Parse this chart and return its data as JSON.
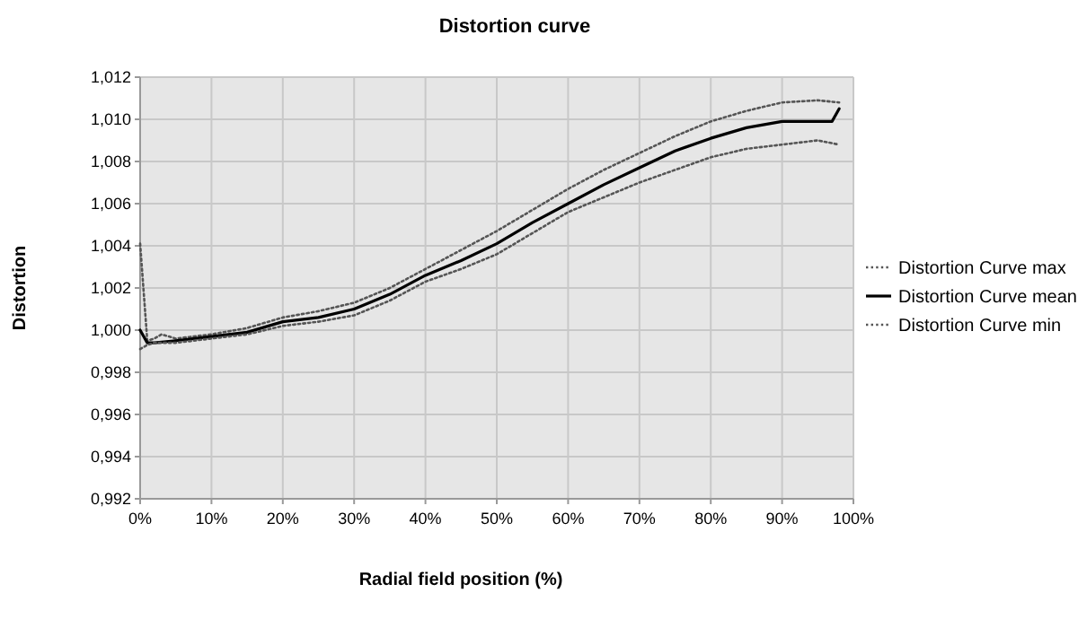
{
  "chart_data": {
    "type": "line",
    "title": "Distortion curve",
    "xlabel": "Radial field position (%)",
    "ylabel": "Distortion",
    "xlim": [
      0,
      100
    ],
    "xticks": [
      {
        "value": 0,
        "label": "0%"
      },
      {
        "value": 10,
        "label": "10%"
      },
      {
        "value": 20,
        "label": "20%"
      },
      {
        "value": 30,
        "label": "30%"
      },
      {
        "value": 40,
        "label": "40%"
      },
      {
        "value": 50,
        "label": "50%"
      },
      {
        "value": 60,
        "label": "60%"
      },
      {
        "value": 70,
        "label": "70%"
      },
      {
        "value": 80,
        "label": "80%"
      },
      {
        "value": 90,
        "label": "90%"
      },
      {
        "value": 100,
        "label": "100%"
      }
    ],
    "ylim": [
      0.992,
      1.012
    ],
    "yticks": [
      {
        "value": 0.992,
        "label": "0,992"
      },
      {
        "value": 0.994,
        "label": "0,994"
      },
      {
        "value": 0.996,
        "label": "0,996"
      },
      {
        "value": 0.998,
        "label": "0,998"
      },
      {
        "value": 1.0,
        "label": "1,000"
      },
      {
        "value": 1.002,
        "label": "1,002"
      },
      {
        "value": 1.004,
        "label": "1,004"
      },
      {
        "value": 1.006,
        "label": "1,006"
      },
      {
        "value": 1.008,
        "label": "1,008"
      },
      {
        "value": 1.01,
        "label": "1,010"
      },
      {
        "value": 1.012,
        "label": "1,012"
      }
    ],
    "grid": true,
    "legend": "right",
    "marker": "none",
    "series": [
      {
        "name": "Distortion Curve max",
        "color": "#555555",
        "line_style": "dotted",
        "x": [
          0,
          1,
          2,
          3,
          5,
          10,
          15,
          20,
          25,
          30,
          35,
          40,
          45,
          50,
          55,
          60,
          65,
          70,
          75,
          80,
          85,
          90,
          95,
          98
        ],
        "values": [
          1.0041,
          0.9995,
          0.9996,
          0.9998,
          0.9996,
          0.9998,
          1.0001,
          1.0006,
          1.0009,
          1.0013,
          1.002,
          1.0029,
          1.0038,
          1.0047,
          1.0057,
          1.0067,
          1.0076,
          1.0084,
          1.0092,
          1.0099,
          1.0104,
          1.0108,
          1.0109,
          1.0108
        ]
      },
      {
        "name": "Distortion Curve mean",
        "color": "#000000",
        "line_style": "solid",
        "x": [
          0,
          1,
          2,
          5,
          10,
          15,
          20,
          25,
          30,
          35,
          40,
          45,
          50,
          55,
          60,
          65,
          70,
          75,
          80,
          85,
          90,
          95,
          97,
          98
        ],
        "values": [
          1.0,
          0.9994,
          0.9994,
          0.9995,
          0.9997,
          0.9999,
          1.0004,
          1.0006,
          1.001,
          1.0017,
          1.0026,
          1.0033,
          1.0041,
          1.0051,
          1.006,
          1.0069,
          1.0077,
          1.0085,
          1.0091,
          1.0096,
          1.0099,
          1.0099,
          1.0099,
          1.0105
        ]
      },
      {
        "name": "Distortion Curve min",
        "color": "#555555",
        "line_style": "dotted",
        "x": [
          0,
          1,
          2,
          5,
          10,
          15,
          20,
          25,
          30,
          35,
          40,
          45,
          50,
          55,
          60,
          65,
          70,
          75,
          80,
          85,
          90,
          95,
          98
        ],
        "values": [
          0.9991,
          0.9993,
          0.9994,
          0.9994,
          0.9996,
          0.9998,
          1.0002,
          1.0004,
          1.0007,
          1.0014,
          1.0023,
          1.0029,
          1.0036,
          1.0046,
          1.0056,
          1.0063,
          1.007,
          1.0076,
          1.0082,
          1.0086,
          1.0088,
          1.009,
          1.0088
        ]
      }
    ]
  }
}
